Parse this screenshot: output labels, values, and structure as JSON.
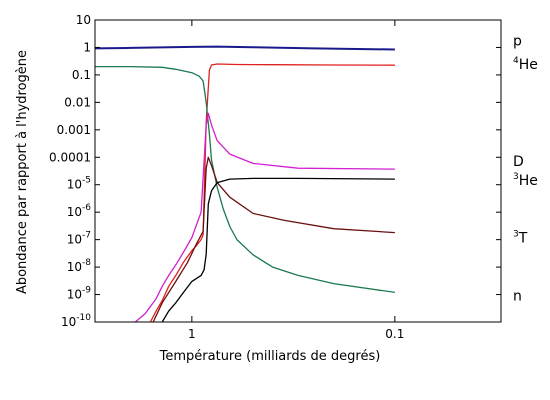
{
  "chart_data": {
    "type": "line",
    "xlabel": "Température (milliards de degrés)",
    "ylabel": "Abondance par rapport à l'hydrogène",
    "x_scale": "log-reversed",
    "xlim": [
      3.0,
      0.03
    ],
    "ylim": [
      1e-10,
      10
    ],
    "y_scale": "log",
    "grid": false,
    "x_ticks": [
      {
        "value": 1,
        "label": "1"
      },
      {
        "value": 0.1,
        "label": "0.1"
      }
    ],
    "y_ticks": [
      {
        "value": 10,
        "base": "10",
        "exp": ""
      },
      {
        "value": 1,
        "base": "1",
        "exp": ""
      },
      {
        "value": 0.1,
        "base": "0.1",
        "exp": ""
      },
      {
        "value": 0.01,
        "base": "0.01",
        "exp": ""
      },
      {
        "value": 0.001,
        "base": "0.001",
        "exp": ""
      },
      {
        "value": 0.0001,
        "base": "0.0001",
        "exp": ""
      },
      {
        "value": 1e-05,
        "base": "10",
        "exp": "-5"
      },
      {
        "value": 1e-06,
        "base": "10",
        "exp": "-6"
      },
      {
        "value": 1e-07,
        "base": "10",
        "exp": "-7"
      },
      {
        "value": 1e-08,
        "base": "10",
        "exp": "-8"
      },
      {
        "value": 1e-09,
        "base": "10",
        "exp": "-9"
      },
      {
        "value": 1e-10,
        "base": "10",
        "exp": "-10"
      }
    ],
    "series": [
      {
        "name": "p",
        "mass": "",
        "color": "#1a1a8c",
        "points": [
          [
            3.0,
            0.92
          ],
          [
            2.0,
            0.96
          ],
          [
            1.0,
            1.05
          ],
          [
            0.75,
            1.07
          ],
          [
            0.5,
            1.02
          ],
          [
            0.25,
            0.92
          ],
          [
            0.1,
            0.84
          ]
        ]
      },
      {
        "name": "He",
        "mass": "4",
        "color": "#e02020",
        "points": [
          [
            1.6,
            1e-10
          ],
          [
            1.5,
            2.5e-10
          ],
          [
            1.4,
            6e-10
          ],
          [
            1.3,
            2e-09
          ],
          [
            1.2,
            5e-09
          ],
          [
            1.1,
            1.5e-08
          ],
          [
            1.0,
            4e-08
          ],
          [
            0.95,
            6e-08
          ],
          [
            0.9,
            1e-07
          ],
          [
            0.88,
            1.5e-07
          ],
          [
            0.85,
            0.002
          ],
          [
            0.82,
            0.15
          ],
          [
            0.8,
            0.23
          ],
          [
            0.75,
            0.25
          ],
          [
            0.6,
            0.24
          ],
          [
            0.4,
            0.235
          ],
          [
            0.2,
            0.23
          ],
          [
            0.1,
            0.225
          ]
        ]
      },
      {
        "name": "n",
        "mass": "",
        "color": "#1a7a50",
        "points": [
          [
            3.0,
            0.2
          ],
          [
            2.0,
            0.2
          ],
          [
            1.4,
            0.19
          ],
          [
            1.2,
            0.16
          ],
          [
            1.0,
            0.12
          ],
          [
            0.92,
            0.09
          ],
          [
            0.88,
            0.06
          ],
          [
            0.85,
            0.01
          ],
          [
            0.82,
            0.0007
          ],
          [
            0.8,
            8e-05
          ],
          [
            0.75,
            8e-06
          ],
          [
            0.7,
            1.3e-06
          ],
          [
            0.65,
            3e-07
          ],
          [
            0.6,
            1e-07
          ],
          [
            0.5,
            2.8e-08
          ],
          [
            0.4,
            1e-08
          ],
          [
            0.3,
            5e-09
          ],
          [
            0.2,
            2.5e-09
          ],
          [
            0.1,
            1.2e-09
          ]
        ]
      },
      {
        "name": "D",
        "mass": "",
        "color": "#d020d0",
        "points": [
          [
            1.9,
            1e-10
          ],
          [
            1.7,
            2e-10
          ],
          [
            1.5,
            7e-10
          ],
          [
            1.4,
            2e-09
          ],
          [
            1.3,
            5e-09
          ],
          [
            1.2,
            1.2e-08
          ],
          [
            1.1,
            3.5e-08
          ],
          [
            1.0,
            1.2e-07
          ],
          [
            0.9,
            1e-06
          ],
          [
            0.85,
            0.0015
          ],
          [
            0.83,
            0.004
          ],
          [
            0.8,
            0.0015
          ],
          [
            0.75,
            0.0004
          ],
          [
            0.65,
            0.00013
          ],
          [
            0.5,
            6e-05
          ],
          [
            0.3,
            4e-05
          ],
          [
            0.1,
            3.7e-05
          ]
        ]
      },
      {
        "name": "T",
        "mass": "3",
        "color": "#6b1010",
        "points": [
          [
            1.55,
            1e-10
          ],
          [
            1.4,
            5e-10
          ],
          [
            1.2,
            3e-09
          ],
          [
            1.05,
            1.5e-08
          ],
          [
            0.95,
            7e-08
          ],
          [
            0.88,
            2e-07
          ],
          [
            0.85,
            4e-05
          ],
          [
            0.83,
            0.0001
          ],
          [
            0.8,
            5e-05
          ],
          [
            0.75,
            1.2e-05
          ],
          [
            0.65,
            3.5e-06
          ],
          [
            0.5,
            9e-07
          ],
          [
            0.35,
            5e-07
          ],
          [
            0.2,
            2.5e-07
          ],
          [
            0.1,
            1.8e-07
          ]
        ]
      },
      {
        "name": "He",
        "mass": "3",
        "color": "#000000",
        "points": [
          [
            1.4,
            1e-10
          ],
          [
            1.3,
            2.5e-10
          ],
          [
            1.2,
            5e-10
          ],
          [
            1.1,
            1.2e-09
          ],
          [
            1.0,
            3e-09
          ],
          [
            0.9,
            5e-09
          ],
          [
            0.87,
            8e-09
          ],
          [
            0.85,
            3e-08
          ],
          [
            0.83,
            2e-06
          ],
          [
            0.8,
            6e-06
          ],
          [
            0.75,
            1.2e-05
          ],
          [
            0.65,
            1.6e-05
          ],
          [
            0.5,
            1.7e-05
          ],
          [
            0.3,
            1.7e-05
          ],
          [
            0.1,
            1.6e-05
          ]
        ]
      }
    ]
  }
}
